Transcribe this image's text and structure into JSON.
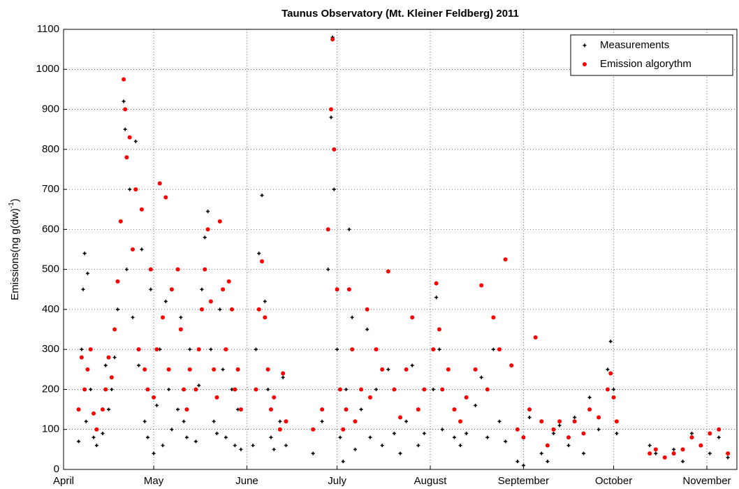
{
  "chart_data": {
    "type": "scatter",
    "title": "Taunus Observatory (Mt. Kleiner Feldberg) 2011",
    "ylabel": "Emissions(ng g(dw)",
    "ylabel_sup": "-1",
    "ylabel_end": ")",
    "xlim": [
      0,
      224
    ],
    "xticks": [
      {
        "value": 0,
        "label": "April"
      },
      {
        "value": 30,
        "label": "May"
      },
      {
        "value": 61,
        "label": "June"
      },
      {
        "value": 91,
        "label": "July"
      },
      {
        "value": 122,
        "label": "August"
      },
      {
        "value": 153,
        "label": "September"
      },
      {
        "value": 183,
        "label": "October"
      },
      {
        "value": 214,
        "label": "November"
      }
    ],
    "ylim": [
      0,
      1100
    ],
    "yticks": [
      0,
      100,
      200,
      300,
      400,
      500,
      600,
      700,
      800,
      900,
      1000,
      1100
    ],
    "grid": true,
    "legend": "northeast",
    "series": [
      {
        "name": "Measurements",
        "color": "#000000",
        "marker": "plus",
        "x": [
          5,
          6,
          6.5,
          7,
          7.5,
          8,
          9,
          10,
          11,
          13,
          14,
          15,
          16,
          17,
          18,
          19,
          20,
          20.5,
          21,
          22,
          23,
          24,
          25,
          26,
          27,
          28,
          29,
          30,
          31,
          32,
          33,
          34,
          35,
          36,
          38,
          39,
          40,
          41,
          42,
          44,
          45,
          46,
          47,
          48,
          49,
          50,
          51,
          52,
          53,
          54,
          55,
          56,
          57,
          58,
          59,
          63,
          64,
          65,
          66,
          67,
          68,
          69,
          70,
          72,
          73,
          74,
          83,
          86,
          88,
          89,
          89.5,
          90,
          91,
          92,
          93,
          94,
          95,
          96,
          97,
          99,
          101,
          102,
          104,
          106,
          108,
          110,
          112,
          114,
          116,
          118,
          120,
          123,
          124,
          125,
          126,
          128,
          130,
          132,
          134,
          137,
          139,
          141,
          143,
          145,
          147,
          149,
          151,
          153,
          155,
          157,
          159,
          161,
          163,
          165,
          168,
          170,
          173,
          175,
          178,
          181,
          182,
          183,
          184,
          195,
          197,
          200,
          203,
          206,
          209,
          212,
          215,
          218,
          221
        ],
        "values": [
          70,
          300,
          450,
          540,
          120,
          490,
          200,
          80,
          60,
          90,
          260,
          150,
          200,
          280,
          400,
          620,
          920,
          850,
          500,
          700,
          380,
          820,
          260,
          550,
          120,
          80,
          450,
          40,
          160,
          300,
          60,
          420,
          200,
          100,
          150,
          380,
          120,
          80,
          300,
          70,
          210,
          450,
          580,
          645,
          300,
          120,
          90,
          400,
          250,
          80,
          470,
          200,
          60,
          150,
          50,
          60,
          300,
          540,
          685,
          420,
          200,
          80,
          50,
          120,
          230,
          60,
          40,
          120,
          500,
          880,
          1080,
          700,
          300,
          80,
          20,
          200,
          600,
          380,
          50,
          150,
          350,
          80,
          200,
          60,
          250,
          90,
          40,
          120,
          260,
          60,
          90,
          200,
          430,
          300,
          100,
          250,
          80,
          60,
          90,
          160,
          230,
          80,
          300,
          120,
          70,
          260,
          20,
          10,
          130,
          330,
          40,
          20,
          90,
          110,
          60,
          130,
          40,
          180,
          100,
          250,
          320,
          200,
          90,
          60,
          40,
          30,
          50,
          20,
          90,
          60,
          40,
          80,
          30
        ]
      },
      {
        "name": "Emission algorythm",
        "color": "#ff0000",
        "marker": "dot",
        "x": [
          5,
          6,
          7,
          8,
          9,
          10,
          11,
          13,
          14,
          15,
          16,
          17,
          18,
          19,
          20,
          20.5,
          21,
          22,
          23,
          24,
          25,
          26,
          27,
          28,
          29,
          30,
          31,
          32,
          33,
          34,
          35,
          36,
          38,
          39,
          40,
          41,
          42,
          44,
          45,
          46,
          47,
          48,
          49,
          50,
          51,
          52,
          53,
          54,
          55,
          56,
          57,
          58,
          59,
          64,
          65,
          66,
          67,
          68,
          69,
          70,
          72,
          73,
          74,
          83,
          86,
          88,
          89,
          89.5,
          90,
          91,
          92,
          93,
          94,
          95,
          96,
          97,
          99,
          101,
          102,
          104,
          106,
          108,
          110,
          112,
          114,
          116,
          118,
          120,
          123,
          124,
          125,
          126,
          128,
          130,
          132,
          134,
          137,
          139,
          141,
          143,
          145,
          147,
          149,
          151,
          153,
          155,
          157,
          159,
          161,
          163,
          165,
          168,
          170,
          173,
          175,
          178,
          181,
          182,
          183,
          184,
          195,
          197,
          200,
          203,
          206,
          209,
          212,
          215,
          218,
          221
        ],
        "values": [
          150,
          280,
          200,
          250,
          300,
          140,
          100,
          150,
          200,
          280,
          230,
          350,
          470,
          620,
          975,
          900,
          780,
          830,
          550,
          700,
          300,
          650,
          250,
          200,
          500,
          180,
          300,
          715,
          380,
          680,
          250,
          450,
          500,
          350,
          200,
          150,
          250,
          200,
          300,
          400,
          500,
          600,
          420,
          250,
          180,
          620,
          450,
          300,
          470,
          400,
          200,
          250,
          150,
          200,
          400,
          520,
          380,
          250,
          150,
          180,
          100,
          240,
          120,
          100,
          150,
          600,
          900,
          1075,
          800,
          450,
          200,
          100,
          150,
          450,
          300,
          120,
          200,
          400,
          180,
          300,
          250,
          495,
          200,
          130,
          250,
          380,
          150,
          200,
          300,
          465,
          350,
          200,
          250,
          150,
          120,
          180,
          250,
          460,
          200,
          380,
          300,
          525,
          260,
          100,
          80,
          150,
          330,
          120,
          60,
          100,
          120,
          80,
          120,
          90,
          150,
          130,
          200,
          240,
          180,
          120,
          40,
          50,
          30,
          40,
          50,
          80,
          60,
          90,
          100,
          40
        ]
      }
    ]
  }
}
